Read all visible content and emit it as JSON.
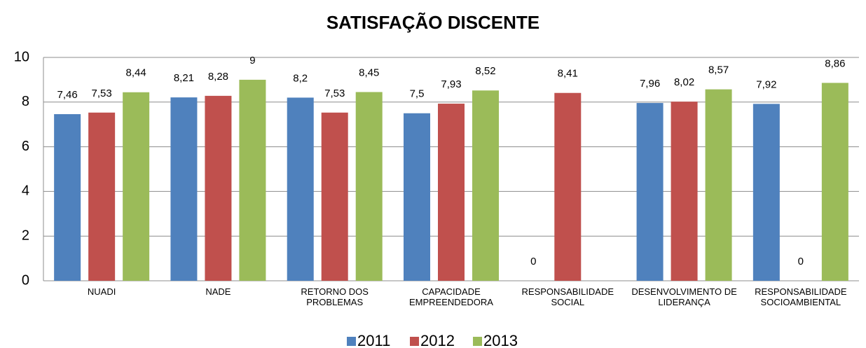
{
  "chart_data": {
    "type": "bar",
    "title": "SATISFAÇÃO DISCENTE",
    "categories": [
      "NUADI",
      "NADE",
      "RETORNO DOS PROBLEMAS",
      "CAPACIDADE EMPREENDEDORA",
      "RESPONSABILIDADE SOCIAL",
      "DESENVOLVIMENTO DE LIDERANÇA",
      "RESPONSABILIDADE SOCIOAMBIENTAL"
    ],
    "series": [
      {
        "name": "2011",
        "color": "#4f81bd",
        "values": [
          7.46,
          8.21,
          8.2,
          7.5,
          0,
          7.96,
          7.92
        ],
        "value_labels": [
          "7,46",
          "8,21",
          "8,2",
          "7,5",
          "0",
          "7,96",
          "7,92"
        ]
      },
      {
        "name": "2012",
        "color": "#c0504d",
        "values": [
          7.53,
          8.28,
          7.53,
          7.93,
          8.41,
          8.02,
          0
        ],
        "value_labels": [
          "7,53",
          "8,28",
          "7,53",
          "7,93",
          "8,41",
          "8,02",
          "0"
        ]
      },
      {
        "name": "2013",
        "color": "#9bbb59",
        "values": [
          8.44,
          9,
          8.45,
          8.52,
          null,
          8.57,
          8.86
        ],
        "value_labels": [
          "8,44",
          "9",
          "8,45",
          "8,52",
          null,
          "8,57",
          "8,86"
        ]
      }
    ],
    "ylim": [
      0,
      10
    ],
    "yticks": [
      0,
      2,
      4,
      6,
      8,
      10
    ],
    "grid": true,
    "legend": "bottom"
  }
}
